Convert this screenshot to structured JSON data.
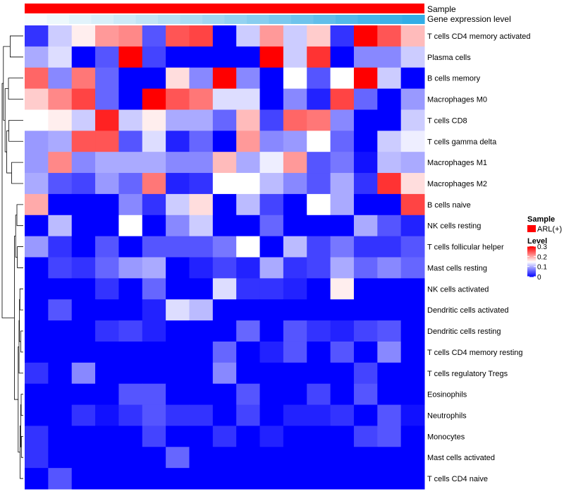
{
  "chart_data": {
    "type": "heatmap",
    "annotation_labels": [
      "Sample",
      "Gene expression level"
    ],
    "sample_annotation": {
      "value": "ARL(+)",
      "color": "#FF0000"
    },
    "expression_annotation": {
      "colors": [
        "#F7FCFE",
        "#EDF8FC",
        "#E2F3FB",
        "#D8EFF9",
        "#CDEAF8",
        "#C2E5F6",
        "#B7E0F5",
        "#ABDCF4",
        "#A0D7F2",
        "#94D2F1",
        "#88CDEF",
        "#7BC8EE",
        "#6EC3EC",
        "#61BEEA",
        "#53B9E9",
        "#47B5E8",
        "#3CB1E7",
        "#32ADE6"
      ]
    },
    "rows": [
      "T cells CD4 memory activated",
      "Plasma cells",
      "B cells memory",
      "Macrophages M0",
      "T cells CD8",
      "T cells gamma delta",
      "Macrophages M1",
      "Macrophages M2",
      "B cells naive",
      "NK cells resting",
      "T cells follicular helper",
      "Mast cells resting",
      "NK cells activated",
      "Dendritic cells activated",
      "Dendritic cells resting",
      "T cells CD4 memory resting",
      "T cells regulatory  Tregs",
      "Eosinophils",
      "Neutrophils",
      "Monocytes",
      "Mast cells activated",
      "T cells CD4 naive"
    ],
    "values": [
      [
        0.03,
        0.12,
        0.16,
        0.21,
        0.22,
        0.05,
        0.25,
        0.26,
        0.0,
        0.12,
        0.21,
        0.12,
        0.18,
        0.03,
        0.3,
        0.25,
        0.19
      ],
      [
        0.1,
        0.13,
        0.0,
        0.05,
        0.3,
        0.04,
        0.0,
        0.0,
        0.0,
        0.0,
        0.3,
        0.12,
        0.27,
        0.0,
        0.08,
        0.08,
        0.12
      ],
      [
        0.24,
        0.08,
        0.23,
        0.06,
        0.0,
        0.0,
        0.17,
        0.08,
        0.3,
        0.08,
        0.0,
        0.15,
        0.05,
        0.15,
        0.3,
        0.12,
        0.0
      ],
      [
        0.18,
        0.22,
        0.26,
        0.06,
        0.0,
        0.3,
        0.25,
        0.23,
        0.13,
        0.13,
        0.0,
        0.08,
        0.02,
        0.26,
        0.06,
        0.0,
        0.09
      ],
      [
        0.15,
        0.16,
        0.12,
        0.28,
        0.12,
        0.16,
        0.1,
        0.1,
        0.06,
        0.19,
        0.04,
        0.24,
        0.23,
        0.08,
        0.0,
        0.0,
        0.12
      ],
      [
        0.09,
        0.1,
        0.25,
        0.25,
        0.05,
        0.13,
        0.02,
        0.06,
        0.0,
        0.21,
        0.08,
        0.09,
        0.15,
        0.06,
        0.0,
        0.12,
        0.14
      ],
      [
        0.09,
        0.22,
        0.08,
        0.1,
        0.1,
        0.1,
        0.08,
        0.08,
        0.19,
        0.1,
        0.14,
        0.21,
        0.05,
        0.07,
        0.01,
        0.11,
        0.1
      ],
      [
        0.1,
        0.05,
        0.04,
        0.09,
        0.06,
        0.23,
        0.02,
        0.03,
        0.15,
        0.15,
        0.11,
        0.08,
        0.05,
        0.1,
        0.03,
        0.27,
        0.17
      ],
      [
        0.2,
        0.0,
        0.0,
        0.0,
        0.08,
        0.03,
        0.12,
        0.17,
        0.0,
        0.11,
        0.04,
        0.0,
        0.15,
        0.1,
        0.0,
        0.0,
        0.26
      ],
      [
        0.0,
        0.11,
        0.0,
        0.0,
        0.15,
        0.0,
        0.08,
        0.12,
        0.0,
        0.0,
        0.06,
        0.0,
        0.0,
        0.0,
        0.1,
        0.05,
        0.02
      ],
      [
        0.09,
        0.03,
        0.0,
        0.05,
        0.0,
        0.05,
        0.05,
        0.05,
        0.07,
        0.15,
        0.0,
        0.11,
        0.04,
        0.07,
        0.03,
        0.03,
        0.05
      ],
      [
        0.0,
        0.04,
        0.03,
        0.06,
        0.09,
        0.1,
        0.0,
        0.02,
        0.04,
        0.02,
        0.1,
        0.03,
        0.04,
        0.1,
        0.06,
        0.08,
        0.06
      ],
      [
        0.0,
        0.0,
        0.0,
        0.03,
        0.0,
        0.06,
        0.0,
        0.0,
        0.13,
        0.03,
        0.03,
        0.02,
        0.0,
        0.16,
        0.0,
        0.0,
        0.0
      ],
      [
        0.0,
        0.05,
        0.0,
        0.0,
        0.0,
        0.02,
        0.13,
        0.11,
        0.0,
        0.0,
        0.0,
        0.0,
        0.0,
        0.0,
        0.0,
        0.0,
        0.0
      ],
      [
        0.0,
        0.0,
        0.0,
        0.03,
        0.04,
        0.02,
        0.0,
        0.0,
        0.0,
        0.06,
        0.0,
        0.05,
        0.03,
        0.02,
        0.04,
        0.05,
        0.0
      ],
      [
        0.0,
        0.0,
        0.0,
        0.0,
        0.0,
        0.0,
        0.0,
        0.0,
        0.06,
        0.0,
        0.02,
        0.05,
        0.0,
        0.05,
        0.0,
        0.08,
        0.0
      ],
      [
        0.03,
        0.0,
        0.08,
        0.0,
        0.0,
        0.0,
        0.0,
        0.0,
        0.08,
        0.0,
        0.0,
        0.0,
        0.0,
        0.0,
        0.04,
        0.0,
        0.0
      ],
      [
        0.0,
        0.0,
        0.0,
        0.0,
        0.05,
        0.05,
        0.0,
        0.0,
        0.0,
        0.05,
        0.0,
        0.0,
        0.04,
        0.0,
        0.05,
        0.0,
        0.0
      ],
      [
        0.0,
        0.0,
        0.03,
        0.01,
        0.03,
        0.05,
        0.03,
        0.03,
        0.0,
        0.04,
        0.0,
        0.02,
        0.02,
        0.03,
        0.0,
        0.05,
        0.01
      ],
      [
        0.03,
        0.0,
        0.0,
        0.0,
        0.0,
        0.04,
        0.0,
        0.0,
        0.03,
        0.0,
        0.02,
        0.0,
        0.0,
        0.0,
        0.04,
        0.05,
        0.0
      ],
      [
        0.03,
        0.0,
        0.0,
        0.0,
        0.0,
        0.0,
        0.06,
        0.0,
        0.0,
        0.0,
        0.0,
        0.0,
        0.0,
        0.0,
        0.0,
        0.0,
        0.0
      ],
      [
        0.0,
        0.05,
        0.0,
        0.0,
        0.0,
        0.0,
        0.0,
        0.0,
        0.0,
        0.0,
        0.0,
        0.0,
        0.0,
        0.0,
        0.0,
        0.0,
        0.0
      ]
    ],
    "color_scale": {
      "min": 0,
      "mid": 0.15,
      "max": 0.3,
      "low": "#0000FF",
      "midColor": "#FFFFFF",
      "high": "#FF0000"
    },
    "legend": {
      "position": "right",
      "sample_title": "Sample",
      "level_title": "Level",
      "ticks": [
        {
          "value": 0.3,
          "label": "0.3"
        },
        {
          "value": 0.2,
          "label": "0.2"
        },
        {
          "value": 0.1,
          "label": "0.1"
        },
        {
          "value": 0,
          "label": "0"
        }
      ]
    },
    "row_dendrogram": true
  }
}
